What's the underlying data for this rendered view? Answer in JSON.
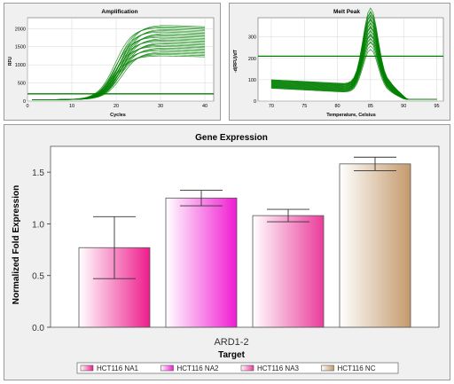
{
  "chart_data": [
    {
      "type": "line",
      "title": "Amplification",
      "xlabel": "Cycles",
      "ylabel": "RFU",
      "xlim": [
        0,
        42
      ],
      "ylim": [
        0,
        2300
      ],
      "x_ticks": [
        0,
        10,
        20,
        30,
        40
      ],
      "y_ticks": [
        0,
        500,
        1000,
        1500,
        2000
      ],
      "threshold": 200,
      "grid": true,
      "line_color": "#008000",
      "series_summary": {
        "curve_count": 24,
        "baseline": 40,
        "plateau_range": [
          1250,
          2100
        ],
        "midpoint_cycle_range": [
          19.5,
          21.5
        ],
        "x_range": [
          1,
          40
        ]
      }
    },
    {
      "type": "line",
      "title": "Melt Peak",
      "xlabel": "Temperature, Celsius",
      "ylabel": "-d(RFU)/dT",
      "xlim": [
        68,
        96
      ],
      "ylim": [
        0,
        390
      ],
      "x_ticks": [
        70,
        75,
        80,
        85,
        90,
        95
      ],
      "y_ticks": [
        0,
        100,
        200,
        300
      ],
      "threshold": 210,
      "grid": true,
      "line_color": "#008000",
      "series_summary": {
        "curve_count": 24,
        "peak_temperature": 85,
        "peak_height_range": [
          200,
          360
        ],
        "start_level_range": [
          60,
          100
        ],
        "x_range": [
          70,
          95
        ]
      }
    },
    {
      "type": "bar",
      "title": "Gene Expression",
      "xlabel": "Target",
      "ylabel": "Normalized Fold Expression",
      "categories": [
        "ARD1-2"
      ],
      "ylim": [
        0,
        1.75
      ],
      "y_ticks": [
        0.0,
        0.5,
        1.0,
        1.5
      ],
      "y_tick_labels": [
        "0.0",
        "0.5",
        "1.0",
        "1.5"
      ],
      "grid": false,
      "legend_position": "bottom",
      "series": [
        {
          "name": "HCT116 NA1",
          "values": [
            0.77
          ],
          "error": [
            0.3
          ],
          "color": "#ee1c8c"
        },
        {
          "name": "HCT116 NA2",
          "values": [
            1.25
          ],
          "error": [
            0.075
          ],
          "color": "#f01cd2"
        },
        {
          "name": "HCT116 NA3",
          "values": [
            1.08
          ],
          "error": [
            0.06
          ],
          "color": "#ea3c9a"
        },
        {
          "name": "HCT116 NC",
          "values": [
            1.58
          ],
          "error": [
            0.065
          ],
          "color": "#c49a6c"
        }
      ]
    }
  ]
}
